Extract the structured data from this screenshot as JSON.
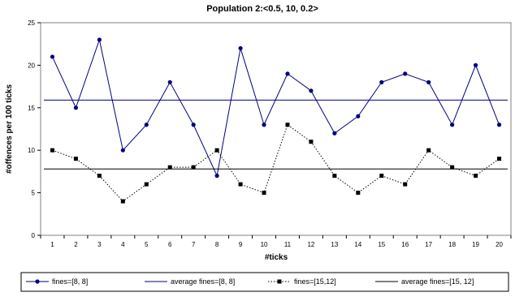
{
  "chart_data": {
    "type": "line",
    "title": "Population 2:<0.5, 10, 0.2>",
    "xlabel": "#ticks",
    "ylabel": "#offences per 100 ticks",
    "x": [
      1,
      2,
      3,
      4,
      5,
      6,
      7,
      8,
      9,
      10,
      11,
      12,
      13,
      14,
      15,
      16,
      17,
      18,
      19,
      20
    ],
    "ylim": [
      0,
      25
    ],
    "yticks": [
      0,
      5,
      10,
      15,
      20,
      25
    ],
    "grid": false,
    "legend_position": "bottom",
    "series": [
      {
        "name": "fines=[8, 8]",
        "kind": "markers-line",
        "color": "#000080",
        "marker": "circle",
        "values": [
          21,
          15,
          23,
          10,
          13,
          18,
          13,
          7,
          22,
          13,
          19,
          17,
          12,
          14,
          18,
          19,
          18,
          13,
          20,
          13
        ]
      },
      {
        "name": "average fines=[8, 8]",
        "kind": "average",
        "color": "#000080",
        "values": [
          15.9,
          15.9,
          15.9,
          15.9,
          15.9,
          15.9,
          15.9,
          15.9,
          15.9,
          15.9,
          15.9,
          15.9,
          15.9,
          15.9,
          15.9,
          15.9,
          15.9,
          15.9,
          15.9,
          15.9
        ]
      },
      {
        "name": "fines=[15,12]",
        "kind": "markers-dotted",
        "color": "#000000",
        "marker": "square",
        "values": [
          10,
          9,
          7,
          4,
          6,
          8,
          8,
          10,
          6,
          5,
          13,
          11,
          7,
          5,
          7,
          6,
          10,
          8,
          7,
          9
        ]
      },
      {
        "name": "average fines=[15, 12]",
        "kind": "average",
        "color": "#000000",
        "values": [
          7.8,
          7.8,
          7.8,
          7.8,
          7.8,
          7.8,
          7.8,
          7.8,
          7.8,
          7.8,
          7.8,
          7.8,
          7.8,
          7.8,
          7.8,
          7.8,
          7.8,
          7.8,
          7.8,
          7.8
        ]
      }
    ]
  }
}
